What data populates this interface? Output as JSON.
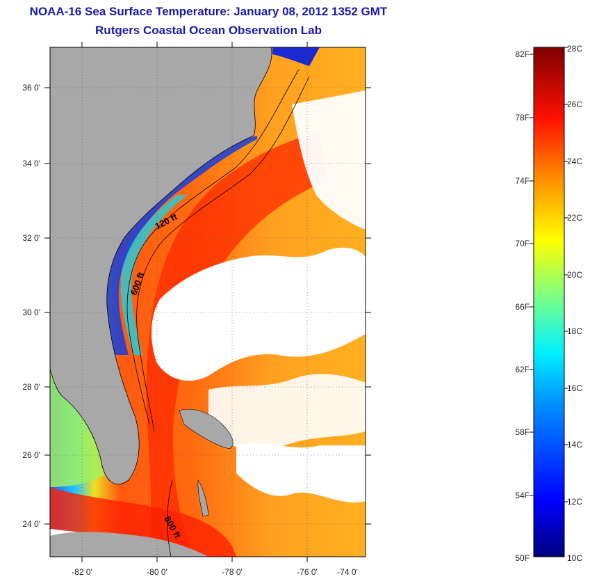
{
  "header": {
    "title": "NOAA-16 Sea Surface Temperature:  January 08, 2012 1352 GMT",
    "subtitle": "Rutgers Coastal Ocean Observation Lab"
  },
  "map": {
    "lat_labels": [
      "36 0'",
      "34 0'",
      "32 0'",
      "30 0'",
      "28 0'",
      "26 0'",
      "24 0'"
    ],
    "lon_labels": [
      "-82 0'",
      "-80 0'",
      "-78 0'",
      "-76 0'",
      "-74 0'"
    ],
    "contour_labels": [
      "120 ft",
      "600 ft",
      "600 ft"
    ],
    "colors": {
      "land": "#a8a8a8",
      "cloud": "#ffffff",
      "coast": "#000000"
    }
  },
  "colorbar": {
    "fahrenheit_labels": [
      "82F",
      "78F",
      "74F",
      "70F",
      "66F",
      "62F",
      "58F",
      "54F",
      "50F"
    ],
    "celsius_labels": [
      "28C",
      "26C",
      "24C",
      "22C",
      "20C",
      "18C",
      "16C",
      "14C",
      "12C",
      "10C"
    ],
    "range_c": [
      10,
      28
    ],
    "colors": [
      "#00007f",
      "#0000ff",
      "#007fff",
      "#00ffff",
      "#7fff7f",
      "#ffff00",
      "#ff7f00",
      "#ff0000",
      "#7f0000"
    ]
  }
}
